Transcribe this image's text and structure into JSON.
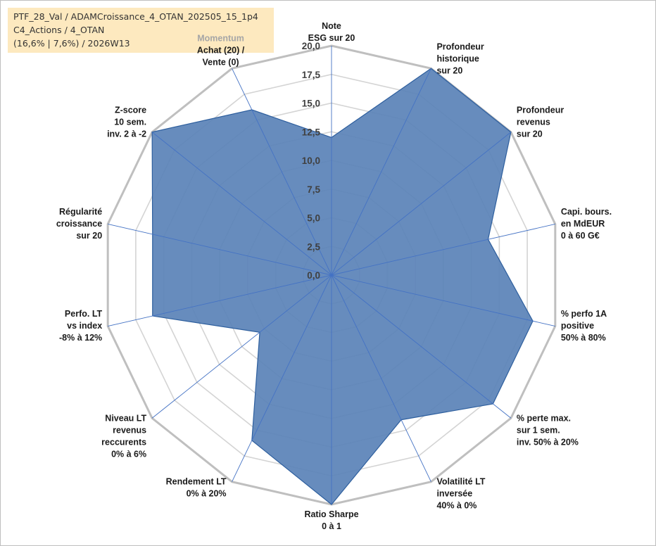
{
  "info": {
    "line1": "PTF_28_Val / ADAMCroissance_4_OTAN_202505_15_1p4",
    "line2": "C4_Actions / 4_OTAN",
    "line3": "(16,6% | 7,6%) / 2026W13"
  },
  "colors": {
    "fill": "#5b83b8",
    "stroke": "#2e5f9e",
    "spoke": "#4472c4",
    "grid_outer": "#bfbfbf",
    "grid_inner": "#d4d4d4"
  },
  "chart_data": {
    "type": "radar",
    "range": [
      0,
      20
    ],
    "tick_step": 2.5,
    "tick_labels": [
      "0,0",
      "2,5",
      "5,0",
      "7,5",
      "10,0",
      "12,5",
      "15,0",
      "17,5",
      "20,0"
    ],
    "axes": [
      {
        "lines": [
          "Note",
          "ESG sur 20"
        ],
        "value": 12
      },
      {
        "lines": [
          "Profondeur",
          "historique",
          "sur 20"
        ],
        "value": 20
      },
      {
        "lines": [
          "Profondeur",
          "revenus",
          "sur 20"
        ],
        "value": 20
      },
      {
        "lines": [
          "Capi. bours.",
          "en MdEUR",
          "0 à 60 G€"
        ],
        "value": 14
      },
      {
        "lines": [
          "% perfo 1A",
          "positive",
          "50% à 80%"
        ],
        "value": 18
      },
      {
        "lines": [
          "% perte max.",
          "sur 1 sem.",
          "inv. 50% à 20%"
        ],
        "value": 18
      },
      {
        "lines": [
          "Volatilité LT",
          "inversée",
          "40% à 0%"
        ],
        "value": 14
      },
      {
        "lines": [
          "Ratio Sharpe",
          "0 à 1"
        ],
        "value": 20
      },
      {
        "lines": [
          "Rendement LT",
          "0% à 20%"
        ],
        "value": 16
      },
      {
        "lines": [
          "Niveau LT",
          "revenus",
          "reccurents",
          "0% à 6%"
        ],
        "value": 8
      },
      {
        "lines": [
          "Perfo. LT",
          "vs index",
          "-8% à 12%"
        ],
        "value": 16
      },
      {
        "lines": [
          "Régularité",
          "croissance",
          "sur 20"
        ],
        "value": 16
      },
      {
        "lines": [
          "Z-score",
          "10 sem.",
          "inv. 2 à -2"
        ],
        "value": 20
      },
      {
        "lines": [
          "Momentum",
          "Achat (20) /",
          "Vente (0)"
        ],
        "value": 16
      }
    ]
  }
}
